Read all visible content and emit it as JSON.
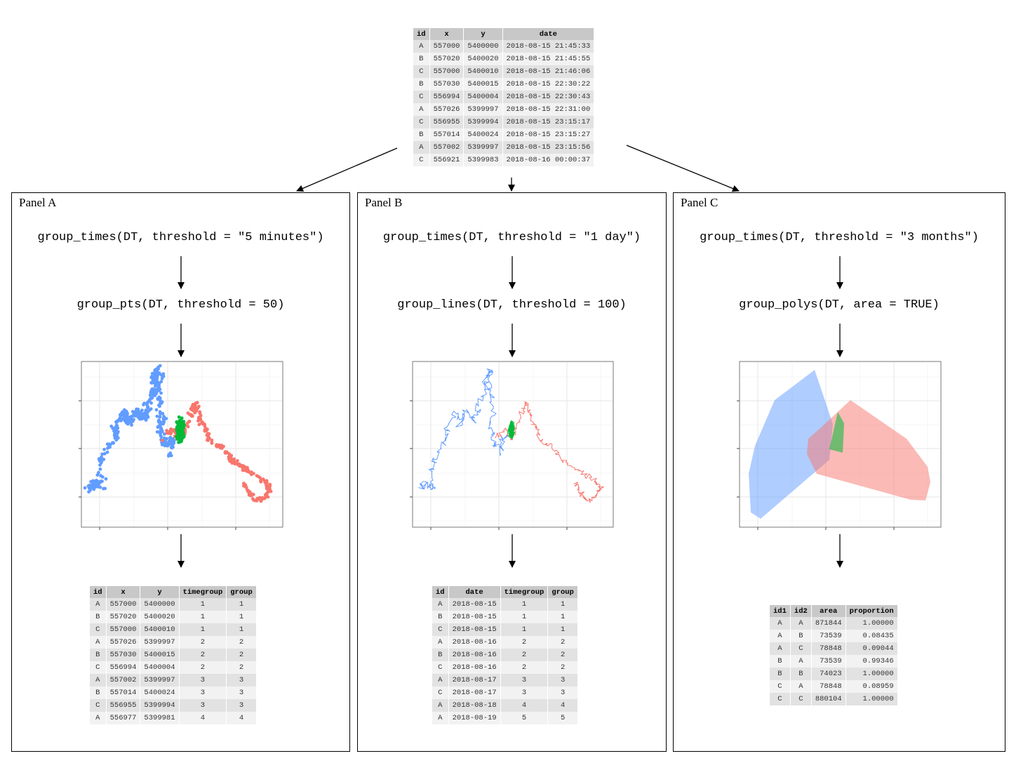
{
  "colors": {
    "A": "#F8766D",
    "B": "#619CFF",
    "C": "#00BA38"
  },
  "top_table": {
    "headers": [
      "id",
      "x",
      "y",
      "date"
    ],
    "rows": [
      [
        "A",
        "557000",
        "5400000",
        "2018-08-15 21:45:33"
      ],
      [
        "B",
        "557020",
        "5400020",
        "2018-08-15 21:45:55"
      ],
      [
        "C",
        "557000",
        "5400010",
        "2018-08-15 21:46:06"
      ],
      [
        "B",
        "557030",
        "5400015",
        "2018-08-15 22:30:22"
      ],
      [
        "C",
        "556994",
        "5400004",
        "2018-08-15 22:30:43"
      ],
      [
        "A",
        "557026",
        "5399997",
        "2018-08-15 22:31:00"
      ],
      [
        "C",
        "556955",
        "5399994",
        "2018-08-15 23:15:17"
      ],
      [
        "B",
        "557014",
        "5400024",
        "2018-08-15 23:15:27"
      ],
      [
        "A",
        "557002",
        "5399997",
        "2018-08-15 23:15:56"
      ],
      [
        "C",
        "556921",
        "5399983",
        "2018-08-16 00:00:37"
      ]
    ]
  },
  "panel_a": {
    "title": "Panel A",
    "step1": "group_times(DT, threshold = \"5 minutes\")",
    "step2": "group_pts(DT, threshold = 50)",
    "table": {
      "headers": [
        "id",
        "x",
        "y",
        "timegroup",
        "group"
      ],
      "rows": [
        [
          "A",
          "557000",
          "5400000",
          "1",
          "1"
        ],
        [
          "B",
          "557020",
          "5400020",
          "1",
          "1"
        ],
        [
          "C",
          "557000",
          "5400010",
          "1",
          "1"
        ],
        [
          "A",
          "557026",
          "5399997",
          "2",
          "2"
        ],
        [
          "B",
          "557030",
          "5400015",
          "2",
          "2"
        ],
        [
          "C",
          "556994",
          "5400004",
          "2",
          "2"
        ],
        [
          "A",
          "557002",
          "5399997",
          "3",
          "3"
        ],
        [
          "B",
          "557014",
          "5400024",
          "3",
          "3"
        ],
        [
          "C",
          "556955",
          "5399994",
          "3",
          "3"
        ],
        [
          "A",
          "556977",
          "5399981",
          "4",
          "4"
        ]
      ]
    }
  },
  "panel_b": {
    "title": "Panel B",
    "step1": "group_times(DT, threshold = \"1 day\")",
    "step2": "group_lines(DT, threshold = 100)",
    "table": {
      "headers": [
        "id",
        "date",
        "timegroup",
        "group"
      ],
      "rows": [
        [
          "A",
          "2018-08-15",
          "1",
          "1"
        ],
        [
          "B",
          "2018-08-15",
          "1",
          "1"
        ],
        [
          "C",
          "2018-08-15",
          "1",
          "1"
        ],
        [
          "A",
          "2018-08-16",
          "2",
          "2"
        ],
        [
          "B",
          "2018-08-16",
          "2",
          "2"
        ],
        [
          "C",
          "2018-08-16",
          "2",
          "2"
        ],
        [
          "A",
          "2018-08-17",
          "3",
          "3"
        ],
        [
          "C",
          "2018-08-17",
          "3",
          "3"
        ],
        [
          "A",
          "2018-08-18",
          "4",
          "4"
        ],
        [
          "A",
          "2018-08-19",
          "5",
          "5"
        ]
      ]
    }
  },
  "panel_c": {
    "title": "Panel C",
    "step1": "group_times(DT, threshold = \"3 months\")",
    "step2": "group_polys(DT, area = TRUE)",
    "table": {
      "headers": [
        "id1",
        "id2",
        "area",
        "proportion"
      ],
      "rows": [
        [
          "A",
          "A",
          "871844",
          "1.00000"
        ],
        [
          "A",
          "B",
          "73539",
          "0.08435"
        ],
        [
          "A",
          "C",
          "78848",
          "0.09044"
        ],
        [
          "B",
          "A",
          "73539",
          "0.99346"
        ],
        [
          "B",
          "B",
          "74023",
          "1.00000"
        ],
        [
          "C",
          "A",
          "78848",
          "0.08959"
        ],
        [
          "C",
          "C",
          "880104",
          "1.00000"
        ]
      ]
    }
  }
}
